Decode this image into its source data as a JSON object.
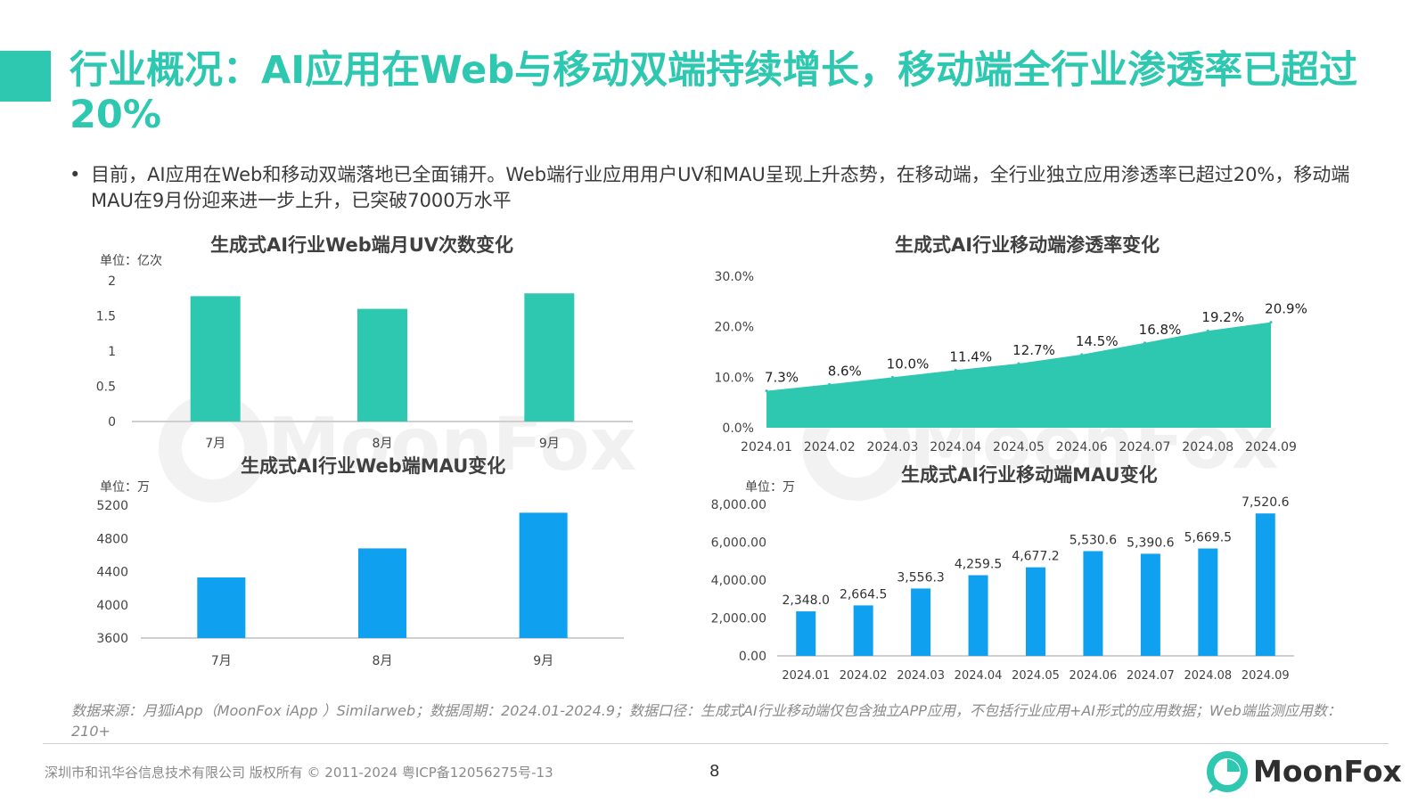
{
  "title": "行业概况：AI应用在Web与移动双端持续增长，移动端全行业渗透率已超过20%",
  "bullet": "目前，AI应用在Web和移动双端落地已全面铺开。Web端行业应用用户UV和MAU呈现上升态势，在移动端，全行业独立应用渗透率已超过20%，移动端MAU在9月份迎来进一步上升，已突破7000万水平",
  "colors": {
    "accent": "#2ec7b0",
    "blue": "#0fa0ef",
    "text": "#333333",
    "muted": "#8a8a8a"
  },
  "chart_data": [
    {
      "id": "web-uv",
      "type": "bar",
      "title": "生成式AI行业Web端月UV次数变化",
      "unit": "单位：亿次",
      "categories": [
        "7月",
        "8月",
        "9月"
      ],
      "values": [
        1.78,
        1.6,
        1.82
      ],
      "ylim": [
        0,
        2
      ],
      "yticks": [
        0,
        0.5,
        1,
        1.5,
        2
      ],
      "ytick_labels": [
        "0",
        "0.5",
        "1",
        "1.5",
        "2"
      ],
      "color": "#2ec7b0",
      "grid": false,
      "legend": "none"
    },
    {
      "id": "mobile-penetration",
      "type": "area",
      "title": "生成式AI行业移动端渗透率变化",
      "categories": [
        "2024.01",
        "2024.02",
        "2024.03",
        "2024.04",
        "2024.05",
        "2024.06",
        "2024.07",
        "2024.08",
        "2024.09"
      ],
      "values": [
        7.3,
        8.6,
        10.0,
        11.4,
        12.7,
        14.5,
        16.8,
        19.2,
        20.9
      ],
      "data_labels": [
        "7.3%",
        "8.6%",
        "10.0%",
        "11.4%",
        "12.7%",
        "14.5%",
        "16.8%",
        "19.2%",
        "20.9%"
      ],
      "ylim": [
        0,
        30
      ],
      "yticks": [
        0,
        10,
        20,
        30
      ],
      "ytick_labels": [
        "0.0%",
        "10.0%",
        "20.0%",
        "30.0%"
      ],
      "color": "#2ec7b0",
      "grid": false,
      "legend": "none"
    },
    {
      "id": "web-mau",
      "type": "bar",
      "title": "生成式AI行业Web端MAU变化",
      "unit": "单位：万",
      "categories": [
        "7月",
        "8月",
        "9月"
      ],
      "values": [
        4330,
        4680,
        5110
      ],
      "ylim": [
        3600,
        5200
      ],
      "yticks": [
        3600,
        4000,
        4400,
        4800,
        5200
      ],
      "ytick_labels": [
        "3600",
        "4000",
        "4400",
        "4800",
        "5200"
      ],
      "color": "#0fa0ef",
      "grid": false,
      "legend": "none"
    },
    {
      "id": "mobile-mau",
      "type": "bar",
      "title": "生成式AI行业移动端MAU变化",
      "unit": "单位：万",
      "categories": [
        "2024.01",
        "2024.02",
        "2024.03",
        "2024.04",
        "2024.05",
        "2024.06",
        "2024.07",
        "2024.08",
        "2024.09"
      ],
      "values": [
        2348.0,
        2664.5,
        3556.3,
        4259.5,
        4677.2,
        5530.6,
        5390.6,
        5669.5,
        7520.6
      ],
      "data_labels": [
        "2,348.0",
        "2,664.5",
        "3,556.3",
        "4,259.5",
        "4,677.2",
        "5,530.6",
        "5,390.6",
        "5,669.5",
        "7,520.6"
      ],
      "ylim": [
        0,
        8000
      ],
      "yticks": [
        0,
        2000,
        4000,
        6000,
        8000
      ],
      "ytick_labels": [
        "0.00",
        "2,000.00",
        "4,000.00",
        "6,000.00",
        "8,000.00"
      ],
      "color": "#0fa0ef",
      "grid": false,
      "legend": "none"
    }
  ],
  "source": "数据来源：月狐iApp（MoonFox iApp ）Similarweb；数据周期：2024.01-2024.9；数据口径：生成式AI行业移动端仅包含独立APP应用，不包括行业应用+AI形式的应用数据；Web端监测应用数：210+",
  "watermark_text": "MoonFox",
  "footer": {
    "copyright": "深圳市和讯华谷信息技术有限公司 版权所有 © 2011-2024 粤ICP备12056275号-13",
    "page_number": "8",
    "logo_text": "MoonFox"
  }
}
